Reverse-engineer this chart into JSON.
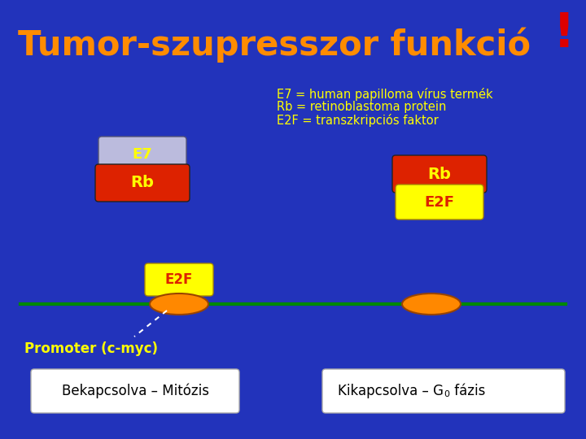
{
  "bg_color": "#2233BB",
  "title": "Tumor-szupresszor funkció",
  "title_color": "#FF8C00",
  "title_fontsize": 30,
  "exclaim": "!",
  "exclaim_color": "#DD0000",
  "legend_line1": "E7 = human papilloma vírus termék",
  "legend_line2": "Rb = retinoblastoma protein",
  "legend_line3": "E2F = transzkripciós faktor",
  "legend_color": "#FFFF00",
  "legend_fontsize": 10.5,
  "promoter_text": "Promoter (c-myc)",
  "promoter_color": "#FFFF00",
  "left_bottom_text": "Bekapcsolva – Mitózis",
  "right_bottom_text1": "Kikapcsolva – G",
  "right_bottom_sub": "0",
  "right_bottom_text2": " fázis",
  "bottom_text_color": "#000000",
  "bottom_box_color": "#FFFFFF",
  "E7_color": "#BBBBDD",
  "Rb_color": "#DD2200",
  "E2F_color_yellow": "#FFFF00",
  "orange_color": "#FF8800",
  "green_line_color": "#008800",
  "label_yellow": "#FFFF00",
  "label_white": "#FFFFFF"
}
